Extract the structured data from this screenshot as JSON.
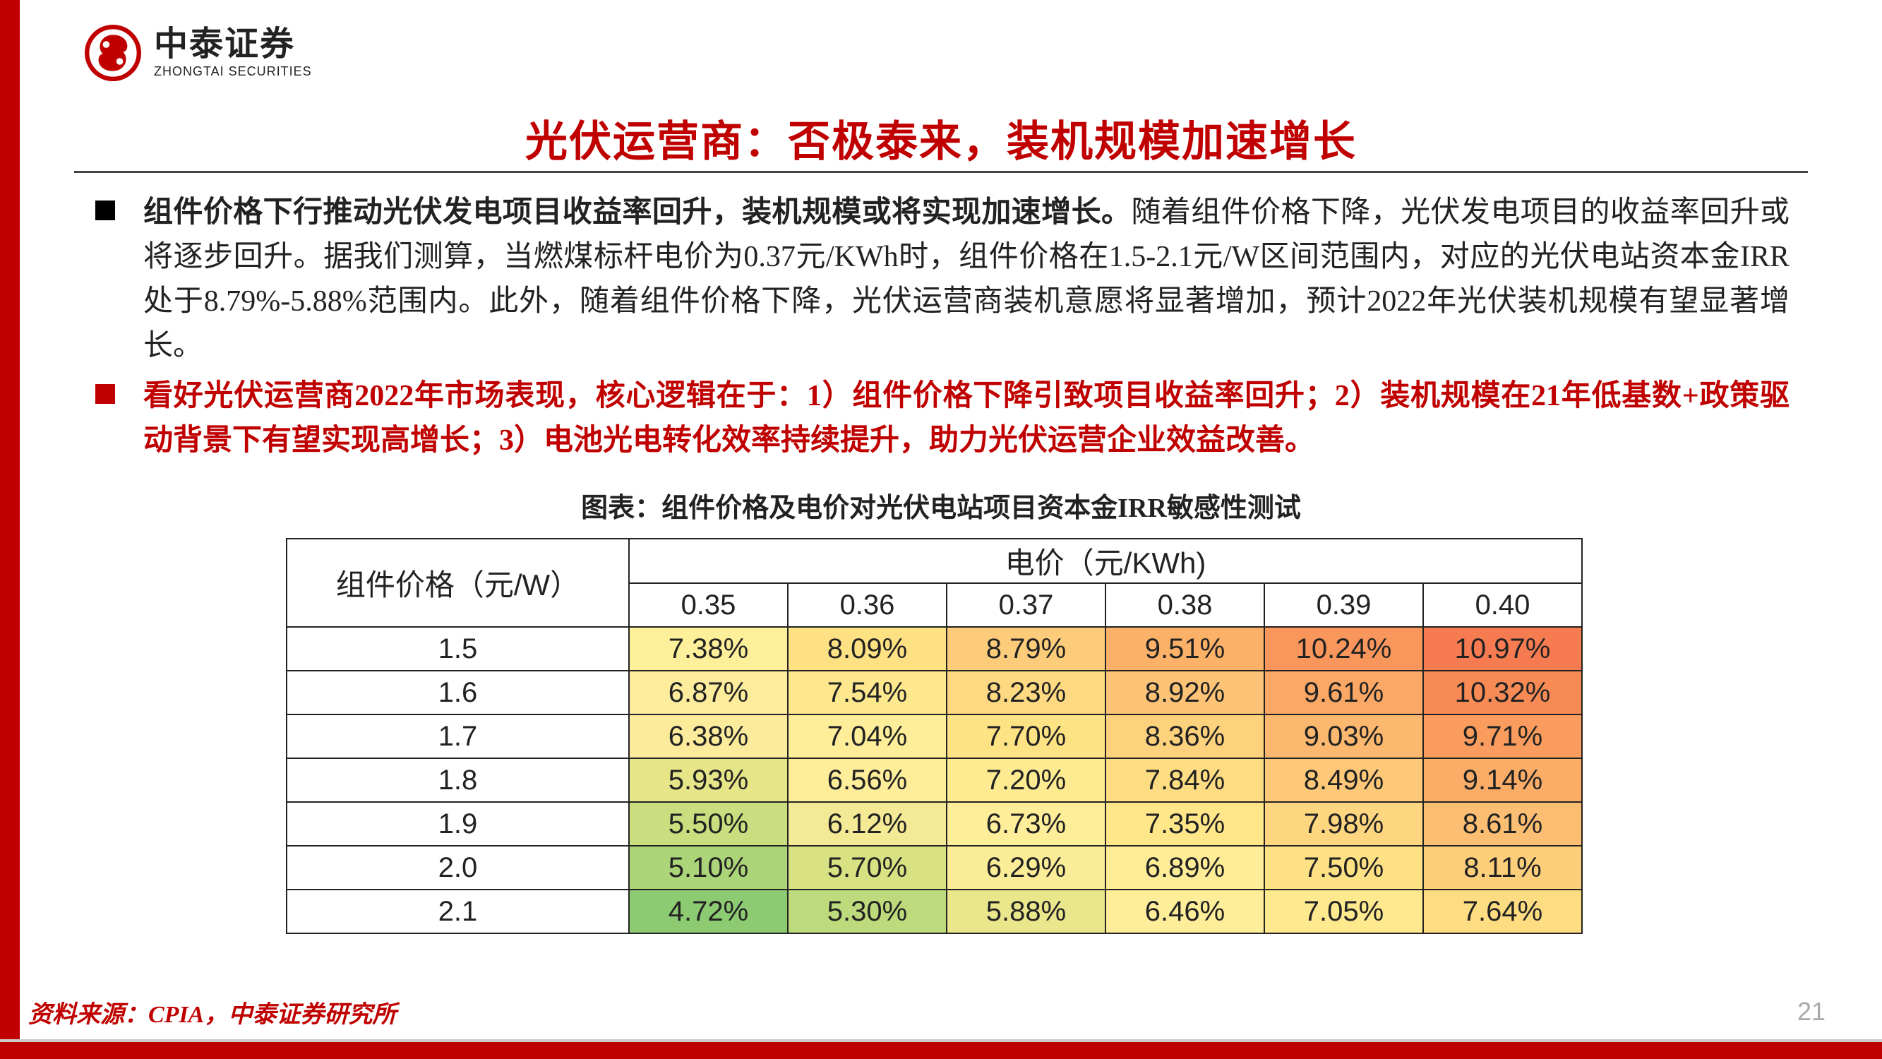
{
  "logo": {
    "cn": "中泰证券",
    "en": "ZHONGTAI SECURITIES",
    "mark_color": "#c00000"
  },
  "title": "光伏运营商：否极泰来，装机规模加速增长",
  "bullets": [
    {
      "marker_color": "#000000",
      "text_color": "#222222",
      "bold_lead": "组件价格下行推动光伏发电项目收益率回升，装机规模或将实现加速增长。",
      "rest": "随着组件价格下降，光伏发电项目的收益率回升或将逐步回升。据我们测算，当燃煤标杆电价为0.37元/KWh时，组件价格在1.5-2.1元/W区间范围内，对应的光伏电站资本金IRR处于8.79%-5.88%范围内。此外，随着组件价格下降，光伏运营商装机意愿将显著增加，预计2022年光伏装机规模有望显著增长。"
    },
    {
      "marker_color": "#c00000",
      "text_color": "#c00000",
      "full_red": "看好光伏运营商2022年市场表现，核心逻辑在于：1）组件价格下降引致项目收益率回升；2）装机规模在21年低基数+政策驱动背景下有望实现高增长；3）电池光电转化效率持续提升，助力光伏运营企业效益改善。"
    }
  ],
  "chart_caption": "图表：组件价格及电价对光伏电站项目资本金IRR敏感性测试",
  "table": {
    "row_header_label": "组件价格（元/W）",
    "col_super_label": "电价（元/KWh)",
    "price_cols": [
      "0.35",
      "0.36",
      "0.37",
      "0.38",
      "0.39",
      "0.40"
    ],
    "module_rows": [
      "1.5",
      "1.6",
      "1.7",
      "1.8",
      "1.9",
      "2.0",
      "2.1"
    ],
    "values": [
      [
        "7.38%",
        "8.09%",
        "8.79%",
        "9.51%",
        "10.24%",
        "10.97%"
      ],
      [
        "6.87%",
        "7.54%",
        "8.23%",
        "8.92%",
        "9.61%",
        "10.32%"
      ],
      [
        "6.38%",
        "7.04%",
        "7.70%",
        "8.36%",
        "9.03%",
        "9.71%"
      ],
      [
        "5.93%",
        "6.56%",
        "7.20%",
        "7.84%",
        "8.49%",
        "9.14%"
      ],
      [
        "5.50%",
        "6.12%",
        "6.73%",
        "7.35%",
        "7.98%",
        "8.61%"
      ],
      [
        "5.10%",
        "5.70%",
        "6.29%",
        "6.89%",
        "7.50%",
        "8.11%"
      ],
      [
        "4.72%",
        "5.30%",
        "5.88%",
        "6.46%",
        "7.05%",
        "7.64%"
      ]
    ],
    "cell_colors": [
      [
        "#fef09a",
        "#fee182",
        "#fdcc7a",
        "#fbb168",
        "#f9965b",
        "#f77b50"
      ],
      [
        "#feec9d",
        "#fee88e",
        "#fed981",
        "#fdc377",
        "#fba765",
        "#f88b55"
      ],
      [
        "#fdeb9c",
        "#feed99",
        "#fee385",
        "#fed27d",
        "#fcb86e",
        "#fa9c5d"
      ],
      [
        "#e6e588",
        "#feed99",
        "#feea91",
        "#fedd82",
        "#fdc979",
        "#fbad68"
      ],
      [
        "#cade7f",
        "#f4e994",
        "#feed99",
        "#fee689",
        "#fed67f",
        "#fcbe73"
      ],
      [
        "#acd579",
        "#d9e283",
        "#fbec98",
        "#feec96",
        "#fee184",
        "#fecf7b"
      ],
      [
        "#8dcb72",
        "#bdda7c",
        "#e9e68c",
        "#feed99",
        "#fee98f",
        "#fedc81"
      ]
    ],
    "border_color": "#222222",
    "header_bg": "#ffffff",
    "cell_fontsize": 40
  },
  "source": "资料来源：CPIA，中泰证券研究所",
  "page_number": "21",
  "accent_color": "#c00000"
}
